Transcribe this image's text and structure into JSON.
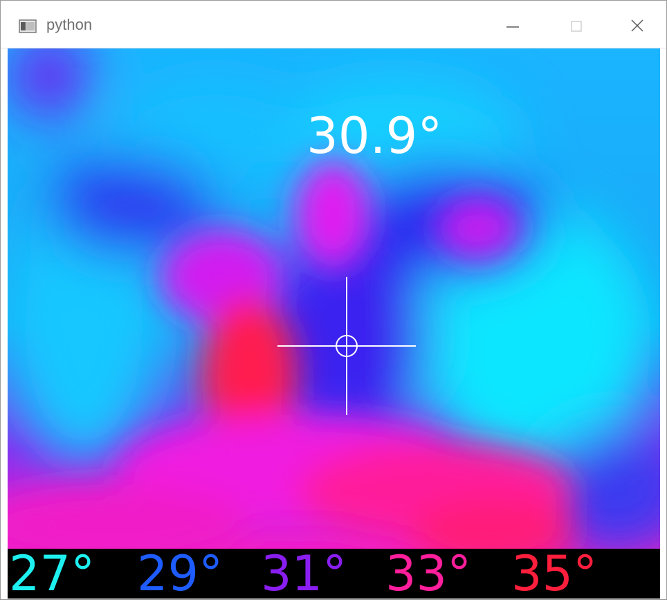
{
  "window": {
    "title": "python",
    "controls": [
      "minimize",
      "maximize",
      "close"
    ]
  },
  "thermal_view": {
    "center_temperature": "30.9°",
    "crosshair": "target-crosshair"
  },
  "color_scale": [
    {
      "label": "27°",
      "color": "#1ef0f0"
    },
    {
      "label": "29°",
      "color": "#1e5cff"
    },
    {
      "label": "31°",
      "color": "#8a1ef0"
    },
    {
      "label": "33°",
      "color": "#ff1e9b"
    },
    {
      "label": "35°",
      "color": "#ff1e3c"
    }
  ],
  "colors": {
    "cold": "#12c8ff",
    "cool": "#2a3cf0",
    "warm": "#e01ef0",
    "hot": "#ff1e50"
  }
}
